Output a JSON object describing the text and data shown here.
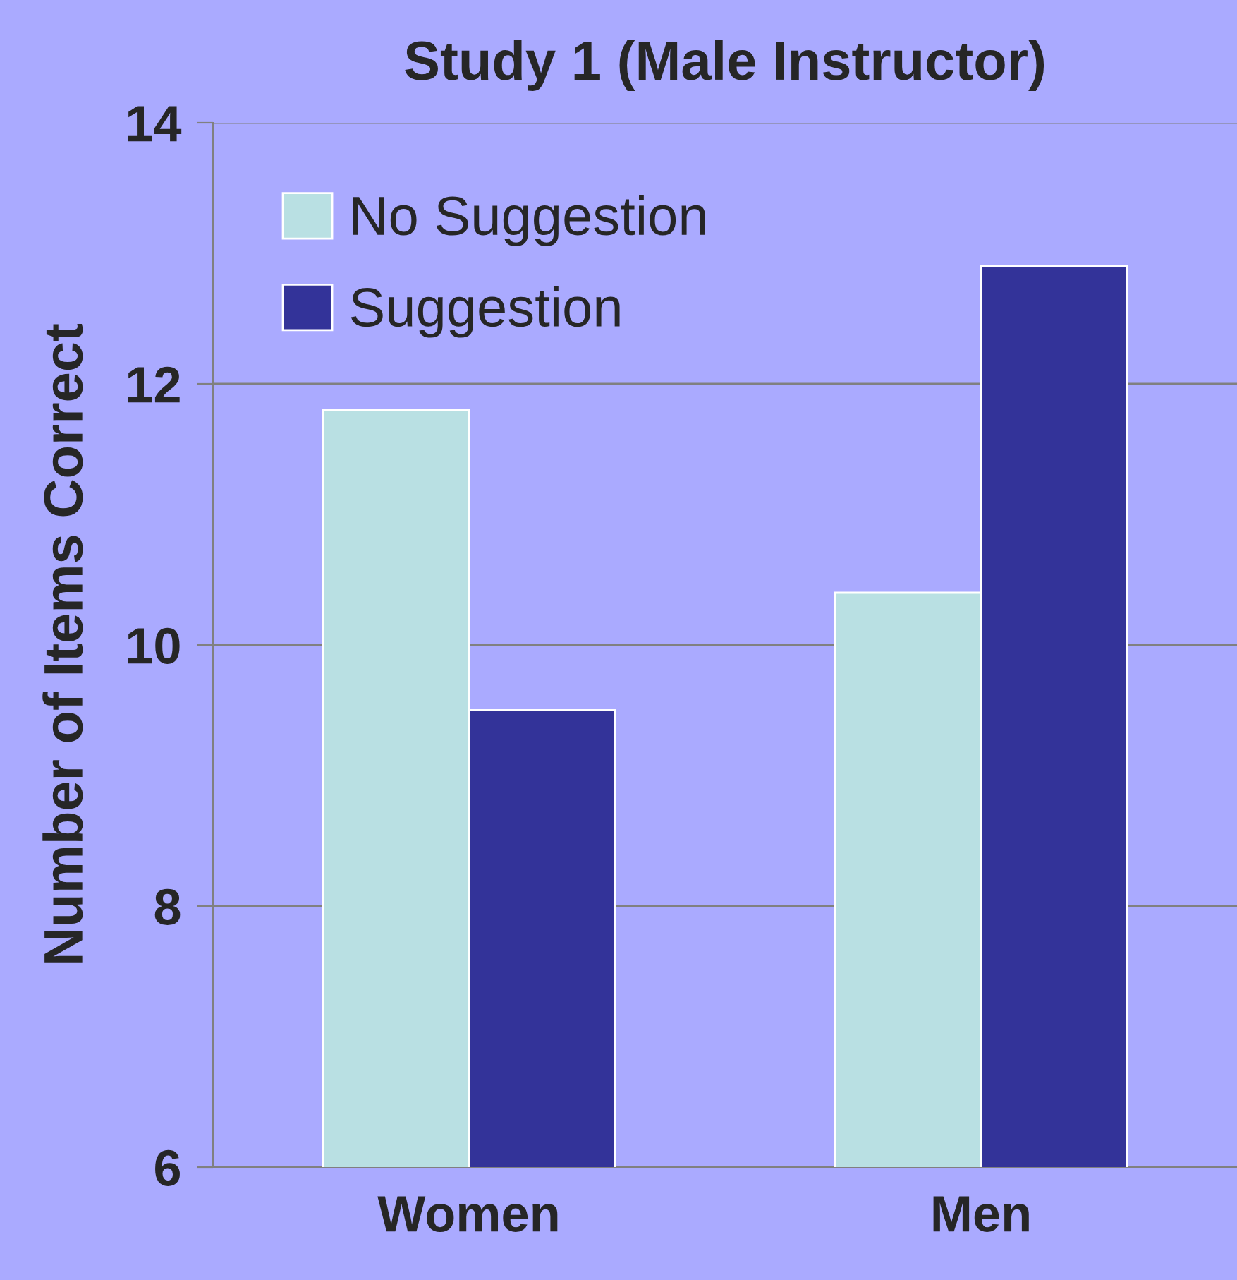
{
  "chart_data": {
    "type": "bar",
    "title": "Study 1 (Male Instructor)",
    "ylabel": "Number of Items Correct",
    "categories": [
      "Women",
      "Men"
    ],
    "series": [
      {
        "name": "No Suggestion",
        "color": "#b9e0e3",
        "values": [
          11.8,
          10.4
        ]
      },
      {
        "name": "Suggestion",
        "color": "#333399",
        "values": [
          9.5,
          12.9
        ]
      }
    ],
    "ylim": [
      6,
      14
    ],
    "yticks": [
      6,
      8,
      10,
      12,
      14
    ],
    "grid": "y",
    "legend": "top left"
  }
}
